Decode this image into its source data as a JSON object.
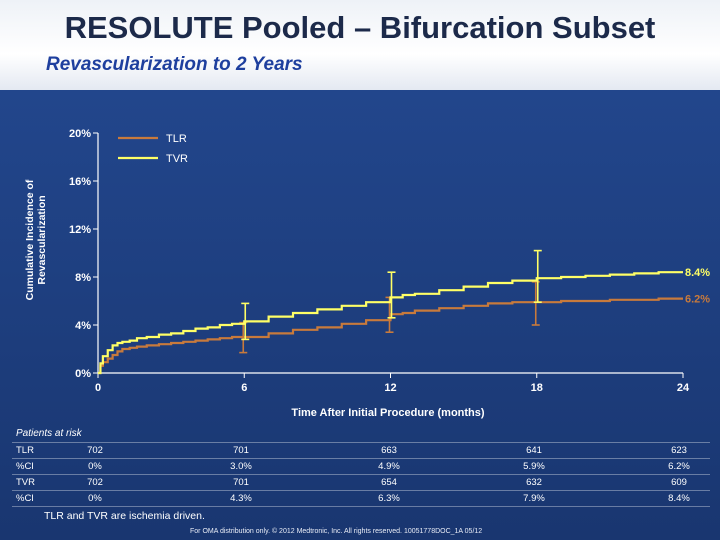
{
  "slide": {
    "title": "RESOLUTE Pooled – Bifurcation Subset",
    "subtitle": "Revascularization to 2 Years",
    "footnote": "TLR and TVR are ischemia driven.",
    "disclaimer": "For OMA distribution only. © 2012 Medtronic, Inc. All rights reserved. 10051778DOC_1A 05/12"
  },
  "chart_data": {
    "type": "line",
    "title": "",
    "xlabel": "Time After Initial Procedure (months)",
    "ylabel": "Cumulative Incidence of Revascularization",
    "xlim": [
      0,
      24
    ],
    "ylim": [
      0,
      20
    ],
    "xticks": [
      "0",
      "6",
      "12",
      "18",
      "24"
    ],
    "yticks": [
      "0%",
      "4%",
      "8%",
      "12%",
      "16%",
      "20%"
    ],
    "legend_position": "top-left",
    "colors": {
      "TLR": "#c87a3c",
      "TVR": "#ffff66",
      "axis": "#ffffff"
    },
    "series": [
      {
        "name": "TLR",
        "color": "#c87a3c",
        "end_label": "6.2%",
        "x": [
          0,
          0.1,
          0.2,
          0.4,
          0.6,
          0.8,
          1.0,
          1.3,
          1.6,
          2.0,
          2.5,
          3.0,
          3.5,
          4.0,
          4.5,
          5.0,
          5.5,
          6.0,
          7.0,
          8.0,
          9.0,
          10.0,
          11.0,
          12.0,
          12.5,
          13.0,
          14.0,
          15.0,
          16.0,
          17.0,
          18.0,
          19.0,
          20.0,
          21.0,
          22.0,
          23.0,
          24.0
        ],
        "y": [
          0.0,
          0.6,
          0.9,
          1.2,
          1.5,
          1.8,
          2.0,
          2.1,
          2.2,
          2.3,
          2.4,
          2.5,
          2.6,
          2.7,
          2.8,
          2.9,
          3.0,
          3.0,
          3.3,
          3.6,
          3.8,
          4.1,
          4.4,
          4.9,
          5.0,
          5.2,
          5.4,
          5.6,
          5.8,
          5.9,
          5.9,
          6.0,
          6.0,
          6.1,
          6.1,
          6.2,
          6.2
        ],
        "ci_at": [
          6,
          12,
          18
        ],
        "ci_low": [
          1.7,
          3.4,
          4.0
        ],
        "ci_high": [
          4.2,
          6.3,
          7.6
        ]
      },
      {
        "name": "TVR",
        "color": "#ffff66",
        "end_label": "8.4%",
        "x": [
          0,
          0.1,
          0.2,
          0.4,
          0.6,
          0.8,
          1.0,
          1.3,
          1.6,
          2.0,
          2.5,
          3.0,
          3.5,
          4.0,
          4.5,
          5.0,
          5.5,
          6.0,
          7.0,
          8.0,
          9.0,
          10.0,
          11.0,
          12.0,
          12.5,
          13.0,
          14.0,
          15.0,
          16.0,
          17.0,
          18.0,
          19.0,
          20.0,
          21.0,
          22.0,
          23.0,
          24.0
        ],
        "y": [
          0.0,
          0.8,
          1.4,
          1.9,
          2.3,
          2.5,
          2.6,
          2.7,
          2.9,
          3.0,
          3.2,
          3.3,
          3.5,
          3.7,
          3.8,
          4.0,
          4.1,
          4.3,
          4.7,
          5.0,
          5.3,
          5.6,
          5.9,
          6.3,
          6.5,
          6.6,
          6.9,
          7.2,
          7.5,
          7.7,
          7.9,
          8.0,
          8.1,
          8.2,
          8.3,
          8.4,
          8.4
        ],
        "ci_at": [
          6,
          12,
          18
        ],
        "ci_low": [
          2.8,
          4.6,
          5.9
        ],
        "ci_high": [
          5.8,
          8.4,
          10.2
        ]
      }
    ]
  },
  "risk_table": {
    "heading": "Patients at risk",
    "rows": [
      {
        "label": "TLR",
        "values": [
          "702",
          "701",
          "663",
          "641",
          "623"
        ]
      },
      {
        "label": "%CI",
        "values": [
          "0%",
          "3.0%",
          "4.9%",
          "5.9%",
          "6.2%"
        ]
      },
      {
        "label": "TVR",
        "values": [
          "702",
          "701",
          "654",
          "632",
          "609"
        ]
      },
      {
        "label": "%CI",
        "values": [
          "0%",
          "4.3%",
          "6.3%",
          "7.9%",
          "8.4%"
        ]
      }
    ]
  }
}
